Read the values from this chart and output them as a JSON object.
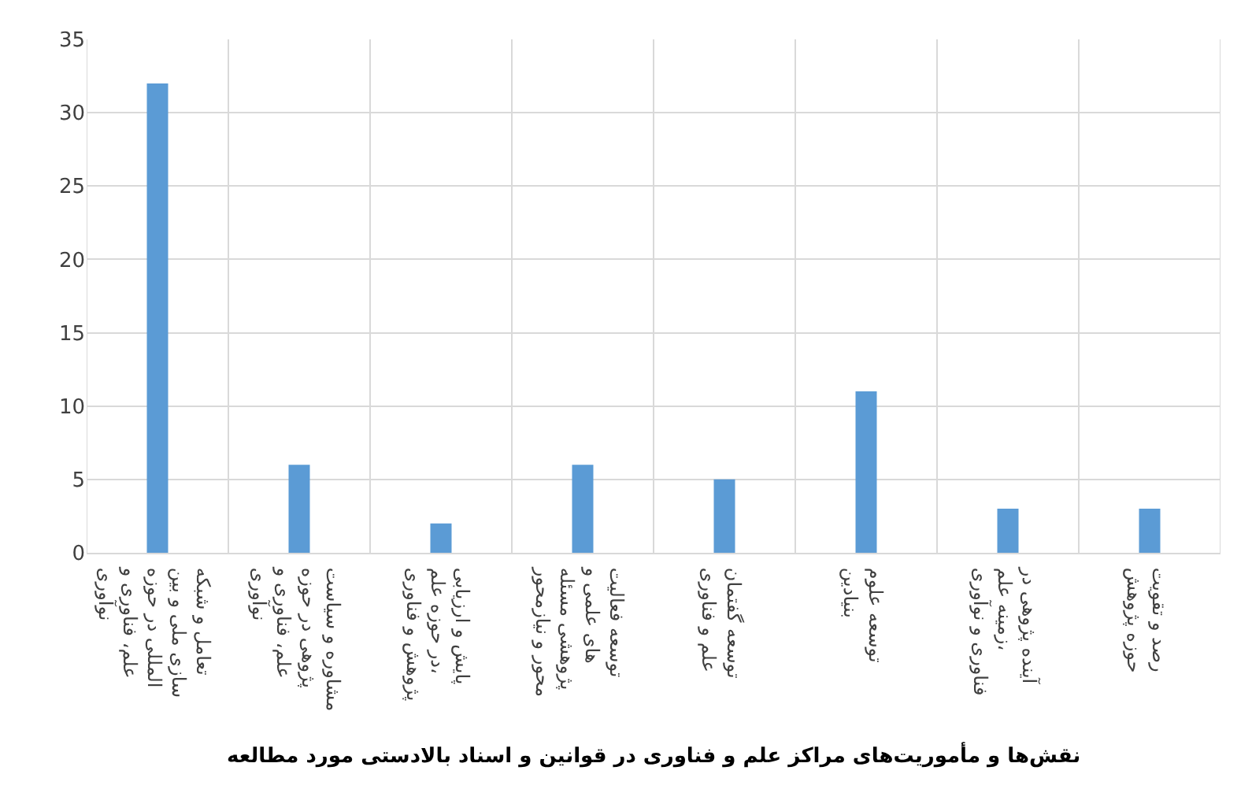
{
  "chart_data": {
    "type": "bar",
    "title": "نقش‌ها و مأموریت‌های مراکز علم و فناوری در قوانین و اسناد بالادستی مورد مطالعه",
    "categories": [
      "تعامل و شبکه سازی ملی و بین المللی در حوزه علم، فناوری و نوآوری",
      "مشاوره و سیاست پژوهی در حوزه علم، فناوری و نوآوری",
      "پایش و ارزیابی در حوزه علم، پژوهش و فناوری",
      "توسعه فعالیت های علمی و پژوهشی مسئله محور و نیازمحور",
      "توسعه گفتمان علم و فناوری",
      "توسعه علوم بنیادین",
      "آینده پژوهی در زمینه علم، فناوری و نوآوری",
      "رصد و تقویت حوزه پژوهش"
    ],
    "values": [
      32,
      6,
      2,
      6,
      5,
      11,
      3,
      3
    ],
    "color": "#5b9bd5",
    "ylim": [
      0,
      35
    ],
    "yticks": [
      0,
      5,
      10,
      15,
      20,
      25,
      30,
      35
    ],
    "grid": true
  }
}
